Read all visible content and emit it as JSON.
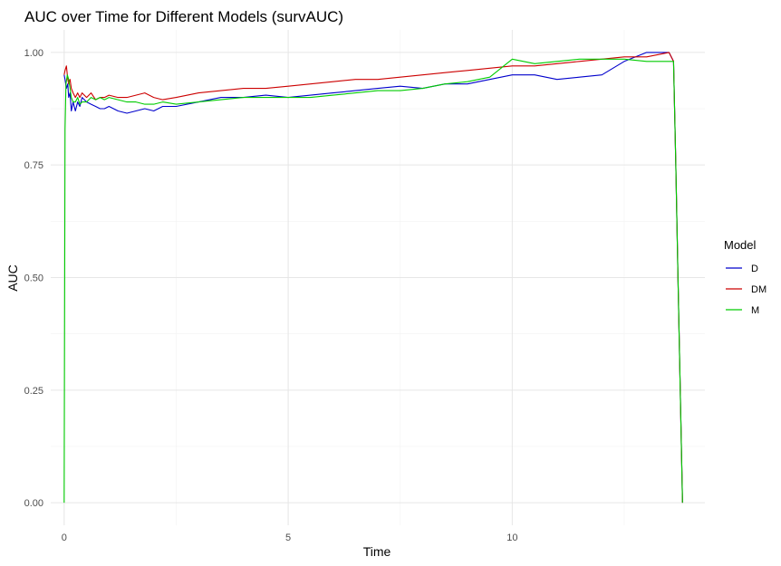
{
  "chart_data": {
    "type": "line",
    "title": "AUC over Time for Different Models (survAUC)",
    "xlabel": "Time",
    "ylabel": "AUC",
    "xlim": [
      -0.3,
      14.3
    ],
    "ylim": [
      -0.05,
      1.05
    ],
    "x_ticks": [
      0,
      5,
      10
    ],
    "x_tick_labels": [
      "0",
      "5",
      "10"
    ],
    "y_ticks": [
      0,
      0.25,
      0.5,
      0.75,
      1
    ],
    "y_tick_labels": [
      "0.00",
      "0.25",
      "0.50",
      "0.75",
      "1.00"
    ],
    "grid": true,
    "legend_title": "Model",
    "legend_position": "right",
    "series": [
      {
        "name": "D",
        "color": "#0000cc",
        "x": [
          0,
          0.02,
          0.05,
          0.08,
          0.1,
          0.13,
          0.16,
          0.2,
          0.25,
          0.3,
          0.35,
          0.4,
          0.5,
          0.6,
          0.7,
          0.8,
          0.9,
          1.0,
          1.2,
          1.4,
          1.6,
          1.8,
          2.0,
          2.2,
          2.5,
          3.0,
          3.5,
          4.0,
          4.5,
          5.0,
          5.5,
          6.0,
          6.5,
          7.0,
          7.5,
          8.0,
          8.5,
          9.0,
          9.5,
          10.0,
          10.5,
          11.0,
          11.5,
          12.0,
          12.5,
          13.0,
          13.5,
          13.6,
          13.65,
          13.7,
          13.75,
          13.8
        ],
        "y": [
          0.95,
          0.94,
          0.92,
          0.93,
          0.9,
          0.91,
          0.87,
          0.89,
          0.87,
          0.89,
          0.88,
          0.9,
          0.89,
          0.885,
          0.88,
          0.875,
          0.875,
          0.88,
          0.87,
          0.865,
          0.87,
          0.875,
          0.87,
          0.88,
          0.88,
          0.89,
          0.9,
          0.9,
          0.905,
          0.9,
          0.905,
          0.91,
          0.915,
          0.92,
          0.925,
          0.92,
          0.93,
          0.93,
          0.94,
          0.95,
          0.95,
          0.94,
          0.945,
          0.95,
          0.98,
          1.0,
          1.0,
          0.98,
          0.75,
          0.5,
          0.25,
          0.0
        ]
      },
      {
        "name": "DM",
        "color": "#cc0000",
        "x": [
          0,
          0.02,
          0.05,
          0.08,
          0.1,
          0.13,
          0.16,
          0.2,
          0.25,
          0.3,
          0.35,
          0.4,
          0.5,
          0.6,
          0.7,
          0.8,
          0.9,
          1.0,
          1.2,
          1.4,
          1.6,
          1.8,
          2.0,
          2.2,
          2.5,
          3.0,
          3.5,
          4.0,
          4.5,
          5.0,
          5.5,
          6.0,
          6.5,
          7.0,
          7.5,
          8.0,
          8.5,
          9.0,
          9.5,
          10.0,
          10.5,
          11.0,
          11.5,
          12.0,
          12.5,
          13.0,
          13.5,
          13.6,
          13.65,
          13.7,
          13.75,
          13.8
        ],
        "y": [
          0.95,
          0.96,
          0.97,
          0.94,
          0.93,
          0.94,
          0.92,
          0.91,
          0.9,
          0.91,
          0.9,
          0.91,
          0.9,
          0.91,
          0.895,
          0.9,
          0.9,
          0.905,
          0.9,
          0.9,
          0.905,
          0.91,
          0.9,
          0.895,
          0.9,
          0.91,
          0.915,
          0.92,
          0.92,
          0.925,
          0.93,
          0.935,
          0.94,
          0.94,
          0.945,
          0.95,
          0.955,
          0.96,
          0.965,
          0.97,
          0.97,
          0.975,
          0.98,
          0.985,
          0.99,
          0.99,
          1.0,
          0.98,
          0.75,
          0.5,
          0.25,
          0.0
        ]
      },
      {
        "name": "M",
        "color": "#00cc00",
        "x": [
          0,
          0.02,
          0.04,
          0.07,
          0.1,
          0.13,
          0.16,
          0.2,
          0.25,
          0.3,
          0.35,
          0.4,
          0.5,
          0.6,
          0.7,
          0.8,
          0.9,
          1.0,
          1.2,
          1.4,
          1.6,
          1.8,
          2.0,
          2.2,
          2.5,
          3.0,
          3.5,
          4.0,
          4.5,
          5.0,
          5.5,
          6.0,
          6.5,
          7.0,
          7.5,
          8.0,
          8.5,
          9.0,
          9.5,
          10.0,
          10.5,
          11.0,
          11.5,
          12.0,
          12.5,
          13.0,
          13.5,
          13.6,
          13.65,
          13.7,
          13.75,
          13.8
        ],
        "y": [
          0.0,
          0.83,
          0.93,
          0.95,
          0.94,
          0.92,
          0.9,
          0.89,
          0.89,
          0.9,
          0.885,
          0.89,
          0.89,
          0.9,
          0.895,
          0.9,
          0.895,
          0.9,
          0.895,
          0.89,
          0.89,
          0.885,
          0.885,
          0.89,
          0.885,
          0.89,
          0.895,
          0.9,
          0.9,
          0.9,
          0.9,
          0.905,
          0.91,
          0.915,
          0.915,
          0.92,
          0.93,
          0.935,
          0.945,
          0.985,
          0.975,
          0.98,
          0.985,
          0.985,
          0.985,
          0.98,
          0.98,
          0.98,
          0.75,
          0.5,
          0.25,
          0.0
        ]
      }
    ]
  }
}
